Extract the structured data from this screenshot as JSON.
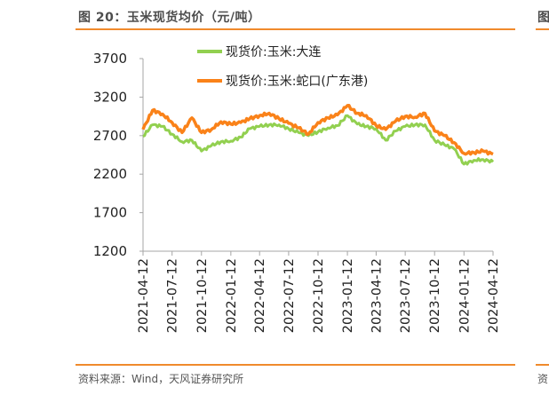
{
  "header": {
    "title": "图 20：玉米现货均价（元/吨）",
    "side_fragment": "图"
  },
  "footer": {
    "source": "资料来源：Wind，天风证券研究所",
    "side_fragment": "资"
  },
  "colors": {
    "accent": "#f08a2c",
    "series_dalian": "#92d050",
    "series_shekou": "#fa8219",
    "axis": "#a6a6a6"
  },
  "chart_data": {
    "type": "line",
    "title": "玉米现货均价（元/吨）",
    "xlabel": "",
    "ylabel": "元/吨",
    "ylim": [
      1200,
      3700
    ],
    "yticks": [
      1200,
      1700,
      2200,
      2700,
      3200,
      3700
    ],
    "xticks": [
      "2021-04-12",
      "2021-07-12",
      "2021-10-12",
      "2022-01-12",
      "2022-04-12",
      "2022-07-12",
      "2022-10-12",
      "2023-01-12",
      "2023-04-12",
      "2023-07-12",
      "2023-10-12",
      "2024-01-12",
      "2024-04-12"
    ],
    "grid": false,
    "legend_position": "top-center",
    "x": [
      "2021-04-12",
      "2021-05-12",
      "2021-06-12",
      "2021-07-12",
      "2021-08-12",
      "2021-09-12",
      "2021-10-12",
      "2021-11-12",
      "2021-12-12",
      "2022-01-12",
      "2022-02-12",
      "2022-03-12",
      "2022-04-12",
      "2022-05-12",
      "2022-06-12",
      "2022-07-12",
      "2022-08-12",
      "2022-09-12",
      "2022-10-12",
      "2022-11-12",
      "2022-12-12",
      "2023-01-12",
      "2023-02-12",
      "2023-03-12",
      "2023-04-12",
      "2023-05-12",
      "2023-06-12",
      "2023-07-12",
      "2023-08-12",
      "2023-09-12",
      "2023-10-12",
      "2023-11-12",
      "2023-12-12",
      "2024-01-12",
      "2024-02-12",
      "2024-03-12",
      "2024-04-12"
    ],
    "series": [
      {
        "name": "现货价:玉米:大连",
        "color": "#92d050",
        "values": [
          2690,
          2840,
          2820,
          2720,
          2620,
          2640,
          2500,
          2570,
          2620,
          2630,
          2680,
          2790,
          2820,
          2840,
          2840,
          2790,
          2740,
          2700,
          2750,
          2800,
          2830,
          2960,
          2850,
          2820,
          2790,
          2640,
          2760,
          2820,
          2840,
          2840,
          2640,
          2580,
          2530,
          2330,
          2380,
          2390,
          2360
        ]
      },
      {
        "name": "现货价:玉米:蛇口(广东港)",
        "color": "#fa8219",
        "values": [
          2780,
          3030,
          2980,
          2870,
          2740,
          2930,
          2740,
          2780,
          2880,
          2850,
          2870,
          2920,
          2960,
          2990,
          2920,
          2860,
          2800,
          2720,
          2870,
          2930,
          2970,
          3090,
          2990,
          2960,
          2830,
          2780,
          2890,
          2950,
          2940,
          2990,
          2760,
          2700,
          2610,
          2470,
          2480,
          2500,
          2460
        ]
      }
    ]
  },
  "legend": {
    "items": [
      {
        "label": "现货价:玉米:大连"
      },
      {
        "label": "现货价:玉米:蛇口(广东港)"
      }
    ]
  },
  "axes": {
    "y_labels": [
      "3700",
      "3200",
      "2700",
      "2200",
      "1700",
      "1200"
    ],
    "x_labels": [
      "2021-04-12",
      "2021-07-12",
      "2021-10-12",
      "2022-01-12",
      "2022-04-12",
      "2022-07-12",
      "2022-10-12",
      "2023-01-12",
      "2023-04-12",
      "2023-07-12",
      "2023-10-12",
      "2024-01-12",
      "2024-04-12"
    ]
  }
}
